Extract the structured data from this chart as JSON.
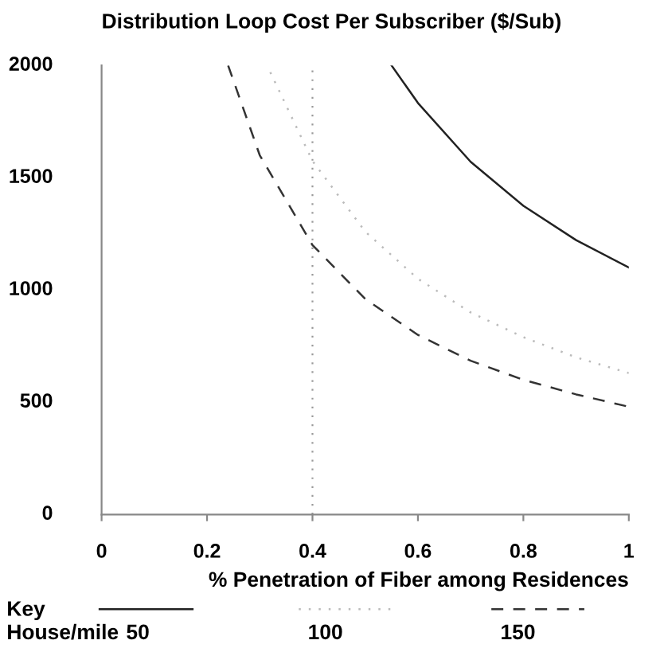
{
  "chart_data": {
    "type": "line",
    "title": "Distribution Loop Cost Per Subscriber ($/Sub)",
    "xlabel": "% Penetration of Fiber among Residences",
    "legend_title": "Key",
    "annotations": [
      "House/mile"
    ],
    "legend": "bottom",
    "xlim": [
      0,
      1
    ],
    "xticks": [
      0,
      0.2,
      0.4,
      0.6,
      0.8,
      1
    ],
    "ylim": [
      0,
      2000
    ],
    "yticks": [
      0,
      500,
      1000,
      1500,
      2000
    ],
    "grid": false,
    "ref_lines": [
      {
        "axis": "x",
        "value": 0.4,
        "color": "#999999",
        "line_style": "dotted"
      }
    ],
    "series": [
      {
        "name": "50",
        "color": "#222222",
        "line_style": "solid",
        "x": [
          0.55,
          0.6,
          0.7,
          0.8,
          0.9,
          1.0
        ],
        "values": [
          2000,
          1833,
          1571,
          1375,
          1222,
          1100
        ]
      },
      {
        "name": "100",
        "color": "#bbbbbb",
        "line_style": "dotted",
        "x": [
          0.32,
          0.4,
          0.5,
          0.6,
          0.7,
          0.8,
          0.9,
          1.0
        ],
        "values": [
          1970,
          1575,
          1260,
          1050,
          900,
          790,
          700,
          630
        ]
      },
      {
        "name": "150",
        "color": "#333333",
        "line_style": "dashed",
        "x": [
          0.24,
          0.3,
          0.4,
          0.5,
          0.6,
          0.7,
          0.8,
          0.9,
          1.0
        ],
        "values": [
          2000,
          1600,
          1200,
          960,
          800,
          685,
          600,
          535,
          480
        ]
      }
    ]
  }
}
